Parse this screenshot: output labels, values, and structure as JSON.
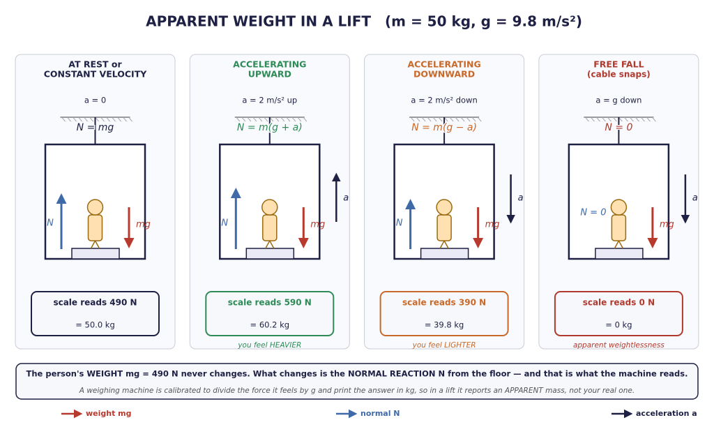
{
  "header": {
    "title": "APPARENT WEIGHT IN A LIFT",
    "params": "(m = 50 kg,  g = 9.8 m/s²)"
  },
  "panels": [
    {
      "heading": [
        "AT REST or",
        "CONSTANT VELOCITY"
      ],
      "acceleration": "a = 0",
      "equation": "N = mg",
      "n_label": "N",
      "w_label": "mg",
      "scale": "scale reads 490 N",
      "mass": "= 50.0 kg"
    },
    {
      "heading": [
        "ACCELERATING",
        "UPWARD"
      ],
      "acceleration": "a = 2 m/s²  up",
      "equation": "N = m(g + a)",
      "n_label": "N",
      "w_label": "mg",
      "a_label": "a",
      "scale": "scale reads 590 N",
      "mass": "= 60.2 kg",
      "caption": "you feel HEAVIER"
    },
    {
      "heading": [
        "ACCELERATING",
        "DOWNWARD"
      ],
      "acceleration": "a = 2 m/s²  down",
      "equation": "N = m(g − a)",
      "n_label": "N",
      "w_label": "mg",
      "a_label": "a",
      "scale": "scale reads 390 N",
      "mass": "= 39.8 kg",
      "caption": "you feel LIGHTER"
    },
    {
      "heading": [
        "FREE FALL",
        "(cable snaps)"
      ],
      "acceleration": "a = g  down",
      "equation": "N = 0",
      "n_label": "N = 0",
      "w_label": "mg",
      "a_label": "a",
      "scale": "scale reads 0 N",
      "mass": "= 0 kg",
      "caption": "apparent weightlessness"
    }
  ],
  "note": {
    "line1": "The person's WEIGHT mg = 490 N never changes. What changes is the NORMAL REACTION N from the floor — and that is what the machine reads.",
    "line2": "A weighing machine is calibrated to divide the force it feels by g and print the answer in kg, so in a lift it reports an APPARENT mass, not your real one."
  },
  "legend": {
    "weight": "weight mg",
    "normal": "normal N",
    "acceleration": "acceleration a"
  }
}
